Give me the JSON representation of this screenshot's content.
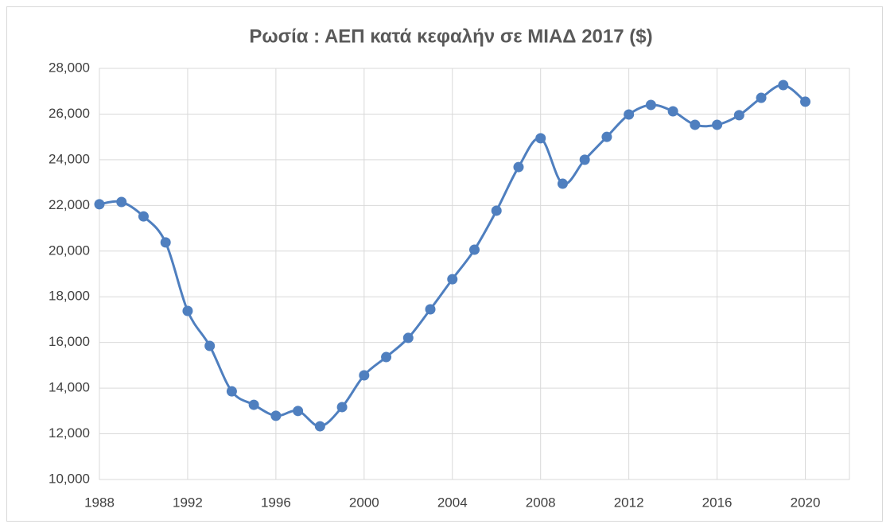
{
  "chart_data": {
    "type": "line",
    "title": "Ρωσία : ΑΕΠ κατά κεφαλήν σε ΜΙΑΔ 2017 ($)",
    "x": [
      1988,
      1989,
      1990,
      1991,
      1992,
      1993,
      1994,
      1995,
      1996,
      1997,
      1998,
      1999,
      2000,
      2001,
      2002,
      2003,
      2004,
      2005,
      2006,
      2007,
      2008,
      2009,
      2010,
      2011,
      2012,
      2013,
      2014,
      2015,
      2016,
      2017,
      2018,
      2019,
      2020
    ],
    "series": [
      {
        "name": "Ρωσία",
        "color": "#4f7fbf",
        "values": [
          22050,
          22150,
          21520,
          20380,
          17380,
          15850,
          13860,
          13270,
          12790,
          13000,
          12330,
          13170,
          14560,
          15360,
          16200,
          17450,
          18770,
          20060,
          21770,
          23680,
          24940,
          22950,
          24000,
          25000,
          25980,
          26400,
          26120,
          25530,
          25530,
          25950,
          26710,
          27270,
          26540
        ]
      }
    ],
    "xlim": [
      1988,
      2022
    ],
    "xticks": [
      1988,
      1992,
      1996,
      2000,
      2004,
      2008,
      2012,
      2016,
      2020
    ],
    "ylim": [
      10000,
      28000
    ],
    "yticks": [
      {
        "value": 10000,
        "label": "10,000"
      },
      {
        "value": 12000,
        "label": "12,000"
      },
      {
        "value": 14000,
        "label": "14,000"
      },
      {
        "value": 16000,
        "label": "16,000"
      },
      {
        "value": 18000,
        "label": "18,000"
      },
      {
        "value": 20000,
        "label": "20,000"
      },
      {
        "value": 22000,
        "label": "22,000"
      },
      {
        "value": 24000,
        "label": "24,000"
      },
      {
        "value": 26000,
        "label": "26,000"
      },
      {
        "value": 28000,
        "label": "28,000"
      }
    ],
    "grid": true
  }
}
